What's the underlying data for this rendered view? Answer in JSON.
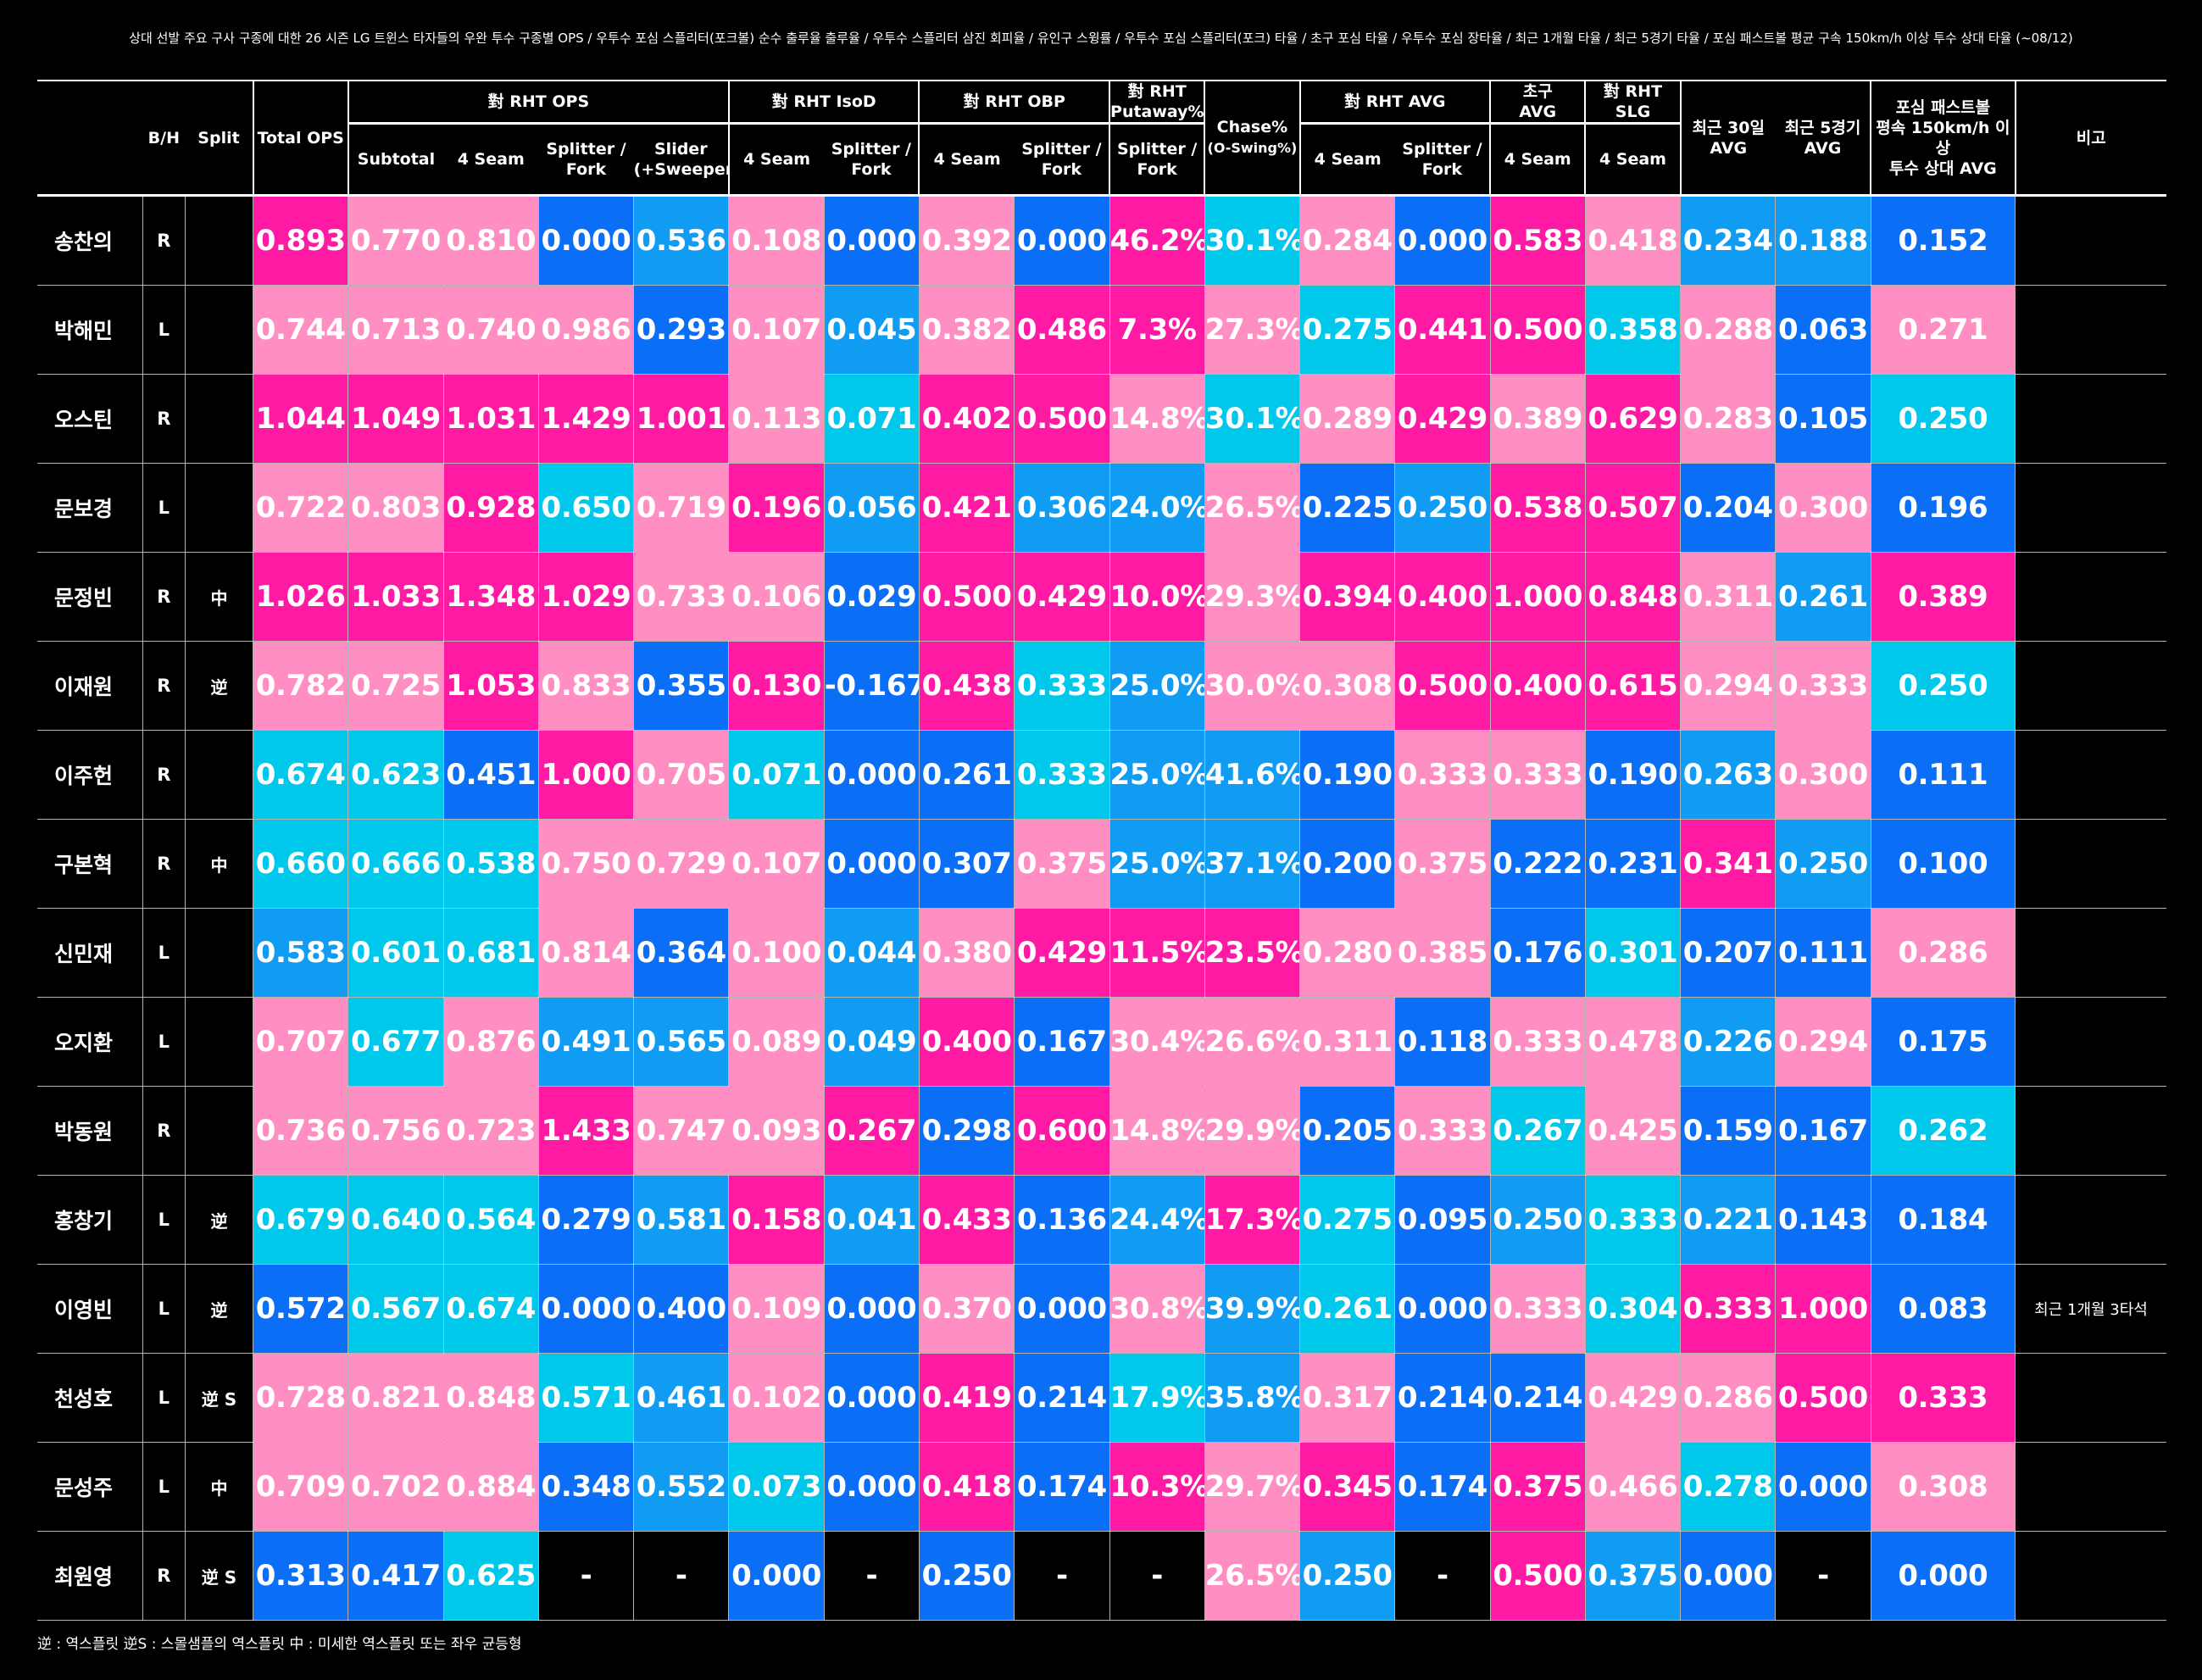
{
  "title": "상대 선발 주요 구사 구종에 대한 26 시즌 LG 트윈스 타자들의 우완 투수 구종별 OPS / 우투수 포심 스플리터(포크볼) 순수 출루율 출루율 / 우투수 스플리터 삼진 회피율 /  유인구 스윙률 / 우투수 포심 스플리터(포크) 타율  / 초구 포심  타율 / 우투수 포심 장타율 / 최근 1개월 타율 / 최근 5경기 타율 / 포심 패스트볼 평균 구속 150km/h 이상 투수 상대 타율 (~08/12)",
  "colors": {
    "magenta": "#ff1aa3",
    "pink": "#ff8ec3",
    "cyan": "#00c8ea",
    "lightblue": "#119cf4",
    "blue": "#0a6ef6",
    "black": "#000000"
  },
  "header": {
    "bh": "B/H",
    "split": "Split",
    "total_ops": "Total OPS",
    "rht_ops": "對 RHT OPS",
    "rht_isod": "對 RHT IsoD",
    "rht_obp": "對 RHT OBP",
    "rht_putaway_l1": "對 RHT",
    "rht_putaway_l2": "Putaway%",
    "chase_l1": "Chase%",
    "chase_l2": "(O-Swing%)",
    "rht_avg": "對 RHT AVG",
    "first_pitch_l1": "초구",
    "first_pitch_l2": "AVG",
    "rht_slg_l1": "對 RHT",
    "rht_slg_l2": "SLG",
    "last30_l1": "최근 30일",
    "last30_l2": "AVG",
    "last5_l1": "최근 5경기",
    "last5_l2": "AVG",
    "fast_l1": "포심 패스트볼",
    "fast_l2": "평속 150km/h 이상",
    "fast_l3": "투수 상대 AVG",
    "note": "비고",
    "sub_subtotal": "Subtotal",
    "sub_4seam": "4 Seam",
    "sub_splitter_l1": "Splitter /",
    "sub_splitter_l2": "Fork",
    "sub_slider_l1": "Slider",
    "sub_slider_l2": "(+Sweeper)"
  },
  "rows": [
    {
      "name": "송찬의",
      "bh": "R",
      "split": "",
      "note": "",
      "cells": [
        [
          "0.893",
          "m"
        ],
        [
          "0.770",
          "p"
        ],
        [
          "0.810",
          "p"
        ],
        [
          "0.000",
          "b"
        ],
        [
          "0.536",
          "lb"
        ],
        [
          "0.108",
          "p"
        ],
        [
          "0.000",
          "b"
        ],
        [
          "0.392",
          "p"
        ],
        [
          "0.000",
          "b"
        ],
        [
          "46.2%",
          "m"
        ],
        [
          "30.1%",
          "c"
        ],
        [
          "0.284",
          "p"
        ],
        [
          "0.000",
          "b"
        ],
        [
          "0.583",
          "m"
        ],
        [
          "0.418",
          "p"
        ],
        [
          "0.234",
          "lb"
        ],
        [
          "0.188",
          "lb"
        ],
        [
          "0.152",
          "b"
        ]
      ]
    },
    {
      "name": "박해민",
      "bh": "L",
      "split": "",
      "note": "",
      "cells": [
        [
          "0.744",
          "p"
        ],
        [
          "0.713",
          "p"
        ],
        [
          "0.740",
          "p"
        ],
        [
          "0.986",
          "p"
        ],
        [
          "0.293",
          "b"
        ],
        [
          "0.107",
          "p"
        ],
        [
          "0.045",
          "lb"
        ],
        [
          "0.382",
          "p"
        ],
        [
          "0.486",
          "m"
        ],
        [
          "7.3%",
          "m"
        ],
        [
          "27.3%",
          "p"
        ],
        [
          "0.275",
          "c"
        ],
        [
          "0.441",
          "m"
        ],
        [
          "0.500",
          "m"
        ],
        [
          "0.358",
          "c"
        ],
        [
          "0.288",
          "p"
        ],
        [
          "0.063",
          "b"
        ],
        [
          "0.271",
          "p"
        ]
      ]
    },
    {
      "name": "오스틴",
      "bh": "R",
      "split": "",
      "note": "",
      "cells": [
        [
          "1.044",
          "m"
        ],
        [
          "1.049",
          "m"
        ],
        [
          "1.031",
          "m"
        ],
        [
          "1.429",
          "m"
        ],
        [
          "1.001",
          "m"
        ],
        [
          "0.113",
          "p"
        ],
        [
          "0.071",
          "c"
        ],
        [
          "0.402",
          "m"
        ],
        [
          "0.500",
          "m"
        ],
        [
          "14.8%",
          "p"
        ],
        [
          "30.1%",
          "c"
        ],
        [
          "0.289",
          "p"
        ],
        [
          "0.429",
          "m"
        ],
        [
          "0.389",
          "p"
        ],
        [
          "0.629",
          "m"
        ],
        [
          "0.283",
          "p"
        ],
        [
          "0.105",
          "b"
        ],
        [
          "0.250",
          "c"
        ]
      ]
    },
    {
      "name": "문보경",
      "bh": "L",
      "split": "",
      "note": "",
      "cells": [
        [
          "0.722",
          "p"
        ],
        [
          "0.803",
          "p"
        ],
        [
          "0.928",
          "m"
        ],
        [
          "0.650",
          "c"
        ],
        [
          "0.719",
          "p"
        ],
        [
          "0.196",
          "m"
        ],
        [
          "0.056",
          "lb"
        ],
        [
          "0.421",
          "m"
        ],
        [
          "0.306",
          "lb"
        ],
        [
          "24.0%",
          "lb"
        ],
        [
          "26.5%",
          "p"
        ],
        [
          "0.225",
          "b"
        ],
        [
          "0.250",
          "lb"
        ],
        [
          "0.538",
          "m"
        ],
        [
          "0.507",
          "m"
        ],
        [
          "0.204",
          "b"
        ],
        [
          "0.300",
          "p"
        ],
        [
          "0.196",
          "b"
        ]
      ]
    },
    {
      "name": "문정빈",
      "bh": "R",
      "split": "中",
      "note": "",
      "cells": [
        [
          "1.026",
          "m"
        ],
        [
          "1.033",
          "m"
        ],
        [
          "1.348",
          "m"
        ],
        [
          "1.029",
          "m"
        ],
        [
          "0.733",
          "p"
        ],
        [
          "0.106",
          "p"
        ],
        [
          "0.029",
          "b"
        ],
        [
          "0.500",
          "m"
        ],
        [
          "0.429",
          "m"
        ],
        [
          "10.0%",
          "m"
        ],
        [
          "29.3%",
          "p"
        ],
        [
          "0.394",
          "m"
        ],
        [
          "0.400",
          "m"
        ],
        [
          "1.000",
          "m"
        ],
        [
          "0.848",
          "m"
        ],
        [
          "0.311",
          "p"
        ],
        [
          "0.261",
          "lb"
        ],
        [
          "0.389",
          "m"
        ]
      ]
    },
    {
      "name": "이재원",
      "bh": "R",
      "split": "逆",
      "note": "",
      "cells": [
        [
          "0.782",
          "p"
        ],
        [
          "0.725",
          "p"
        ],
        [
          "1.053",
          "m"
        ],
        [
          "0.833",
          "p"
        ],
        [
          "0.355",
          "b"
        ],
        [
          "0.130",
          "m"
        ],
        [
          "-0.167",
          "b"
        ],
        [
          "0.438",
          "m"
        ],
        [
          "0.333",
          "c"
        ],
        [
          "25.0%",
          "lb"
        ],
        [
          "30.0%",
          "p"
        ],
        [
          "0.308",
          "p"
        ],
        [
          "0.500",
          "m"
        ],
        [
          "0.400",
          "m"
        ],
        [
          "0.615",
          "m"
        ],
        [
          "0.294",
          "p"
        ],
        [
          "0.333",
          "p"
        ],
        [
          "0.250",
          "c"
        ]
      ]
    },
    {
      "name": "이주헌",
      "bh": "R",
      "split": "",
      "note": "",
      "cells": [
        [
          "0.674",
          "c"
        ],
        [
          "0.623",
          "c"
        ],
        [
          "0.451",
          "b"
        ],
        [
          "1.000",
          "m"
        ],
        [
          "0.705",
          "p"
        ],
        [
          "0.071",
          "c"
        ],
        [
          "0.000",
          "b"
        ],
        [
          "0.261",
          "b"
        ],
        [
          "0.333",
          "c"
        ],
        [
          "25.0%",
          "lb"
        ],
        [
          "41.6%",
          "lb"
        ],
        [
          "0.190",
          "b"
        ],
        [
          "0.333",
          "p"
        ],
        [
          "0.333",
          "p"
        ],
        [
          "0.190",
          "b"
        ],
        [
          "0.263",
          "lb"
        ],
        [
          "0.300",
          "p"
        ],
        [
          "0.111",
          "b"
        ]
      ]
    },
    {
      "name": "구본혁",
      "bh": "R",
      "split": "中",
      "note": "",
      "cells": [
        [
          "0.660",
          "c"
        ],
        [
          "0.666",
          "c"
        ],
        [
          "0.538",
          "c"
        ],
        [
          "0.750",
          "p"
        ],
        [
          "0.729",
          "p"
        ],
        [
          "0.107",
          "p"
        ],
        [
          "0.000",
          "b"
        ],
        [
          "0.307",
          "b"
        ],
        [
          "0.375",
          "p"
        ],
        [
          "25.0%",
          "lb"
        ],
        [
          "37.1%",
          "lb"
        ],
        [
          "0.200",
          "b"
        ],
        [
          "0.375",
          "p"
        ],
        [
          "0.222",
          "b"
        ],
        [
          "0.231",
          "b"
        ],
        [
          "0.341",
          "m"
        ],
        [
          "0.250",
          "lb"
        ],
        [
          "0.100",
          "b"
        ]
      ]
    },
    {
      "name": "신민재",
      "bh": "L",
      "split": "",
      "note": "",
      "cells": [
        [
          "0.583",
          "lb"
        ],
        [
          "0.601",
          "c"
        ],
        [
          "0.681",
          "c"
        ],
        [
          "0.814",
          "p"
        ],
        [
          "0.364",
          "b"
        ],
        [
          "0.100",
          "p"
        ],
        [
          "0.044",
          "lb"
        ],
        [
          "0.380",
          "p"
        ],
        [
          "0.429",
          "m"
        ],
        [
          "11.5%",
          "m"
        ],
        [
          "23.5%",
          "m"
        ],
        [
          "0.280",
          "p"
        ],
        [
          "0.385",
          "p"
        ],
        [
          "0.176",
          "b"
        ],
        [
          "0.301",
          "c"
        ],
        [
          "0.207",
          "b"
        ],
        [
          "0.111",
          "b"
        ],
        [
          "0.286",
          "p"
        ]
      ]
    },
    {
      "name": "오지환",
      "bh": "L",
      "split": "",
      "note": "",
      "cells": [
        [
          "0.707",
          "p"
        ],
        [
          "0.677",
          "c"
        ],
        [
          "0.876",
          "p"
        ],
        [
          "0.491",
          "lb"
        ],
        [
          "0.565",
          "lb"
        ],
        [
          "0.089",
          "p"
        ],
        [
          "0.049",
          "lb"
        ],
        [
          "0.400",
          "m"
        ],
        [
          "0.167",
          "b"
        ],
        [
          "30.4%",
          "p"
        ],
        [
          "26.6%",
          "p"
        ],
        [
          "0.311",
          "p"
        ],
        [
          "0.118",
          "b"
        ],
        [
          "0.333",
          "p"
        ],
        [
          "0.478",
          "p"
        ],
        [
          "0.226",
          "lb"
        ],
        [
          "0.294",
          "p"
        ],
        [
          "0.175",
          "b"
        ]
      ]
    },
    {
      "name": "박동원",
      "bh": "R",
      "split": "",
      "note": "",
      "cells": [
        [
          "0.736",
          "p"
        ],
        [
          "0.756",
          "p"
        ],
        [
          "0.723",
          "p"
        ],
        [
          "1.433",
          "m"
        ],
        [
          "0.747",
          "p"
        ],
        [
          "0.093",
          "p"
        ],
        [
          "0.267",
          "m"
        ],
        [
          "0.298",
          "b"
        ],
        [
          "0.600",
          "m"
        ],
        [
          "14.8%",
          "p"
        ],
        [
          "29.9%",
          "p"
        ],
        [
          "0.205",
          "b"
        ],
        [
          "0.333",
          "p"
        ],
        [
          "0.267",
          "c"
        ],
        [
          "0.425",
          "p"
        ],
        [
          "0.159",
          "b"
        ],
        [
          "0.167",
          "b"
        ],
        [
          "0.262",
          "c"
        ]
      ]
    },
    {
      "name": "홍창기",
      "bh": "L",
      "split": "逆",
      "note": "",
      "cells": [
        [
          "0.679",
          "c"
        ],
        [
          "0.640",
          "c"
        ],
        [
          "0.564",
          "c"
        ],
        [
          "0.279",
          "b"
        ],
        [
          "0.581",
          "lb"
        ],
        [
          "0.158",
          "m"
        ],
        [
          "0.041",
          "lb"
        ],
        [
          "0.433",
          "m"
        ],
        [
          "0.136",
          "b"
        ],
        [
          "24.4%",
          "lb"
        ],
        [
          "17.3%",
          "m"
        ],
        [
          "0.275",
          "c"
        ],
        [
          "0.095",
          "b"
        ],
        [
          "0.250",
          "lb"
        ],
        [
          "0.333",
          "c"
        ],
        [
          "0.221",
          "lb"
        ],
        [
          "0.143",
          "b"
        ],
        [
          "0.184",
          "b"
        ]
      ]
    },
    {
      "name": "이영빈",
      "bh": "L",
      "split": "逆",
      "note": "최근 1개월 3타석",
      "cells": [
        [
          "0.572",
          "b"
        ],
        [
          "0.567",
          "c"
        ],
        [
          "0.674",
          "c"
        ],
        [
          "0.000",
          "b"
        ],
        [
          "0.400",
          "b"
        ],
        [
          "0.109",
          "p"
        ],
        [
          "0.000",
          "b"
        ],
        [
          "0.370",
          "p"
        ],
        [
          "0.000",
          "b"
        ],
        [
          "30.8%",
          "p"
        ],
        [
          "39.9%",
          "lb"
        ],
        [
          "0.261",
          "c"
        ],
        [
          "0.000",
          "b"
        ],
        [
          "0.333",
          "p"
        ],
        [
          "0.304",
          "c"
        ],
        [
          "0.333",
          "m"
        ],
        [
          "1.000",
          "m"
        ],
        [
          "0.083",
          "b"
        ]
      ]
    },
    {
      "name": "천성호",
      "bh": "L",
      "split": "逆 S",
      "note": "",
      "cells": [
        [
          "0.728",
          "p"
        ],
        [
          "0.821",
          "p"
        ],
        [
          "0.848",
          "p"
        ],
        [
          "0.571",
          "c"
        ],
        [
          "0.461",
          "lb"
        ],
        [
          "0.102",
          "p"
        ],
        [
          "0.000",
          "b"
        ],
        [
          "0.419",
          "m"
        ],
        [
          "0.214",
          "b"
        ],
        [
          "17.9%",
          "c"
        ],
        [
          "35.8%",
          "lb"
        ],
        [
          "0.317",
          "p"
        ],
        [
          "0.214",
          "b"
        ],
        [
          "0.214",
          "b"
        ],
        [
          "0.429",
          "p"
        ],
        [
          "0.286",
          "p"
        ],
        [
          "0.500",
          "m"
        ],
        [
          "0.333",
          "m"
        ]
      ]
    },
    {
      "name": "문성주",
      "bh": "L",
      "split": "中",
      "note": "",
      "cells": [
        [
          "0.709",
          "p"
        ],
        [
          "0.702",
          "p"
        ],
        [
          "0.884",
          "p"
        ],
        [
          "0.348",
          "b"
        ],
        [
          "0.552",
          "lb"
        ],
        [
          "0.073",
          "c"
        ],
        [
          "0.000",
          "b"
        ],
        [
          "0.418",
          "m"
        ],
        [
          "0.174",
          "b"
        ],
        [
          "10.3%",
          "m"
        ],
        [
          "29.7%",
          "p"
        ],
        [
          "0.345",
          "m"
        ],
        [
          "0.174",
          "b"
        ],
        [
          "0.375",
          "m"
        ],
        [
          "0.466",
          "p"
        ],
        [
          "0.278",
          "c"
        ],
        [
          "0.000",
          "b"
        ],
        [
          "0.308",
          "p"
        ]
      ]
    },
    {
      "name": "최원영",
      "bh": "R",
      "split": "逆 S",
      "note": "",
      "cells": [
        [
          "0.313",
          "b"
        ],
        [
          "0.417",
          "b"
        ],
        [
          "0.625",
          "c"
        ],
        [
          "-",
          "k"
        ],
        [
          "-",
          "k"
        ],
        [
          "0.000",
          "b"
        ],
        [
          "-",
          "k"
        ],
        [
          "0.250",
          "b"
        ],
        [
          "-",
          "k"
        ],
        [
          "-",
          "k"
        ],
        [
          "26.5%",
          "p"
        ],
        [
          "0.250",
          "lb"
        ],
        [
          "-",
          "k"
        ],
        [
          "0.500",
          "m"
        ],
        [
          "0.375",
          "lb"
        ],
        [
          "0.000",
          "b"
        ],
        [
          "-",
          "k"
        ],
        [
          "0.000",
          "b"
        ]
      ]
    }
  ],
  "footnote": "逆 :  역스플릿    逆S :  스몰샘플의 역스플릿    中 :  미세한 역스플릿 또는 좌우 균등형"
}
